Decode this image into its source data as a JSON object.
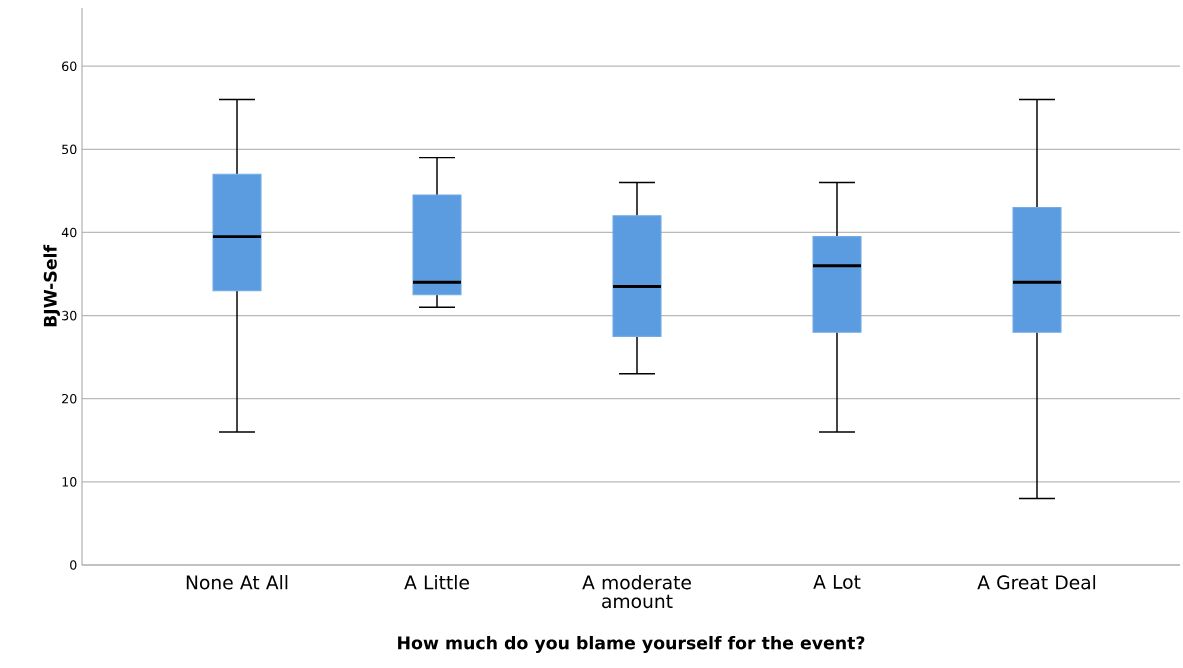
{
  "chart_data": {
    "type": "box",
    "xlabel": "How much do you blame yourself for the event?",
    "ylabel": "BJW-Self",
    "categories": [
      "None At All",
      "A Little",
      "A moderate amount",
      "A Lot",
      "A Great Deal"
    ],
    "boxes": [
      {
        "low": 16,
        "q1": 33,
        "median": 39.5,
        "q3": 47,
        "high": 56
      },
      {
        "low": 31,
        "q1": 32.5,
        "median": 34,
        "q3": 44.5,
        "high": 49
      },
      {
        "low": 23,
        "q1": 27.5,
        "median": 33.5,
        "q3": 42,
        "high": 46
      },
      {
        "low": 16,
        "q1": 28,
        "median": 36,
        "q3": 39.5,
        "high": 46
      },
      {
        "low": 8,
        "q1": 28,
        "median": 34,
        "q3": 43,
        "high": 56
      }
    ],
    "color": "#5b9be0",
    "ylim": [
      0,
      67
    ],
    "yticks": [
      0,
      10,
      20,
      30,
      40,
      50,
      60
    ],
    "grid": "y"
  }
}
